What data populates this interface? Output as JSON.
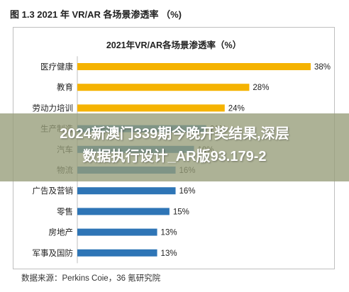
{
  "figure_label": "图 1.3 2021 年 VR/AR 各场景渗透率 （%)",
  "source": "数据来源：Perkins Coie，36 氪研究院",
  "overlay": {
    "line1": "2024新澳门339期今晚开奖结果,深层",
    "line2": "数据执行设计_AR版93.179-2"
  },
  "colors": {
    "gold": "#F5B301",
    "blue": "#2E75B6",
    "gridline": "#d9d9d9"
  },
  "chart_data": {
    "type": "bar",
    "orientation": "horizontal",
    "title": "2021年VR/AR各场景渗透率（%）",
    "xlabel": "",
    "ylabel": "",
    "xlim": [
      0,
      38
    ],
    "grid": false,
    "categories": [
      "医疗健康",
      "教育",
      "劳动力培训",
      "生产制造",
      "汽车",
      "物流",
      "广告及营销",
      "零售",
      "房地产",
      "军事及国防"
    ],
    "values": [
      38,
      28,
      24,
      21,
      19,
      16,
      16,
      15,
      13,
      13
    ],
    "value_labels": [
      "38%",
      "28%",
      "24%",
      "21%",
      "19%",
      "16%",
      "16%",
      "15%",
      "13%",
      "13%"
    ],
    "bar_colors": [
      "#F5B301",
      "#F5B301",
      "#F5B301",
      "#2E75B6",
      "#2E75B6",
      "#2E75B6",
      "#2E75B6",
      "#2E75B6",
      "#2E75B6",
      "#2E75B6"
    ]
  }
}
